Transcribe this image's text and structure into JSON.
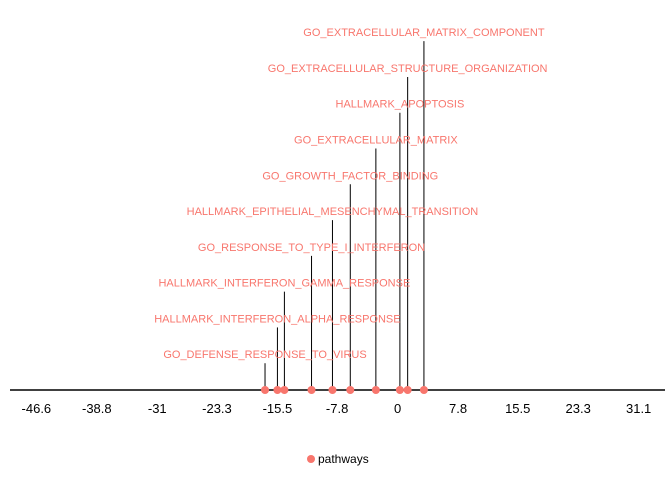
{
  "chart_data": {
    "type": "timeline",
    "title": "",
    "xlabel": "",
    "ylabel": "",
    "x_ticks": [
      -46.6,
      -38.8,
      -31,
      -23.3,
      -15.5,
      -7.8,
      0,
      7.8,
      15.5,
      23.3,
      31.1
    ],
    "x_tick_labels": [
      "-46.6",
      "-38.8",
      "-31",
      "-23.3",
      "-15.5",
      "-7.8",
      "0",
      "7.8",
      "15.5",
      "23.3",
      "31.1"
    ],
    "xlim": [
      -50,
      34.5
    ],
    "ylim": [
      0,
      10.2
    ],
    "grid": false,
    "legend_position": "bottom",
    "series": [
      {
        "name": "pathways",
        "color": "#F8766D",
        "points": [
          {
            "label": "GO_DEFENSE_RESPONSE_TO_VIRUS",
            "x": -17.1,
            "level": 1
          },
          {
            "label": "HALLMARK_INTERFERON_ALPHA_RESPONSE",
            "x": -15.5,
            "level": 2
          },
          {
            "label": "HALLMARK_INTERFERON_GAMMA_RESPONSE",
            "x": -14.6,
            "level": 3
          },
          {
            "label": "GO_RESPONSE_TO_TYPE_I_INTERFERON",
            "x": -11.1,
            "level": 4
          },
          {
            "label": "HALLMARK_EPITHELIAL_MESENCHYMAL_TRANSITION",
            "x": -8.4,
            "level": 5
          },
          {
            "label": "GO_GROWTH_FACTOR_BINDING",
            "x": -6.1,
            "level": 6
          },
          {
            "label": "GO_EXTRACELLULAR_MATRIX",
            "x": -2.8,
            "level": 7
          },
          {
            "label": "HALLMARK_APOPTOSIS",
            "x": 0.3,
            "level": 8
          },
          {
            "label": "GO_EXTRACELLULAR_STRUCTURE_ORGANIZATION",
            "x": 1.3,
            "level": 9
          },
          {
            "label": "GO_EXTRACELLULAR_MATRIX_COMPONENT",
            "x": 3.4,
            "level": 10
          }
        ]
      }
    ]
  }
}
